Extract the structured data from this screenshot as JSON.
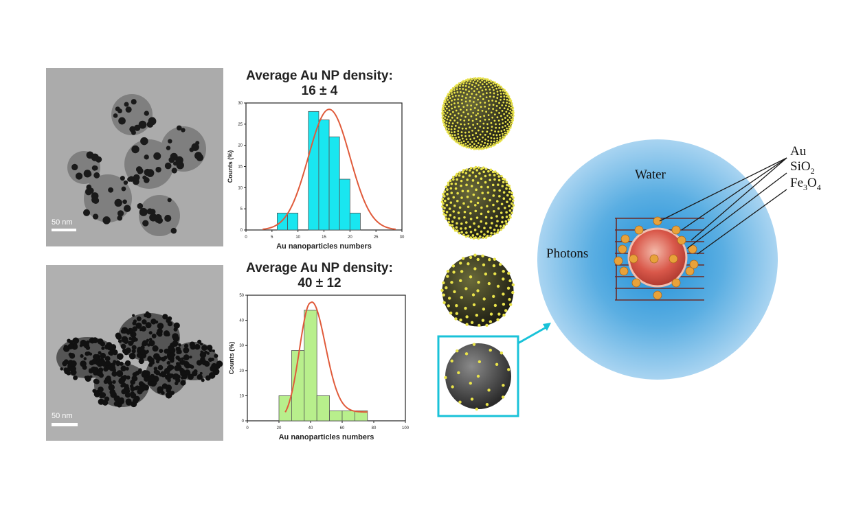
{
  "tem_images": [
    {
      "scale_label": "50 nm"
    },
    {
      "scale_label": "50 nm"
    }
  ],
  "histograms": [
    {
      "title_line1": "Average Au NP density:",
      "title_line2": "16 ± 4"
    },
    {
      "title_line1": "Average Au NP density:",
      "title_line2": "40 ± 12"
    }
  ],
  "chart_data": [
    {
      "type": "bar",
      "title": "Average Au NP density: 16 ± 4",
      "xlabel": "Au nanoparticles numbers",
      "ylabel": "Counts (%)",
      "xlim": [
        0,
        30
      ],
      "ylim": [
        0,
        30
      ],
      "xticks": [
        0,
        5,
        10,
        15,
        20,
        25,
        30
      ],
      "yticks": [
        0,
        5,
        10,
        15,
        20,
        25,
        30
      ],
      "bin_width": 2,
      "x": [
        7,
        9,
        13,
        15,
        17,
        19,
        21,
        23
      ],
      "values": [
        4,
        4,
        28,
        26,
        22,
        12,
        4,
        0
      ],
      "bar_color": "#19e6f0",
      "fit": {
        "type": "gaussian",
        "mean": 16,
        "sigma": 4,
        "peak": 28.5,
        "color": "#e05a3a"
      }
    },
    {
      "type": "bar",
      "title": "Average Au NP density: 40 ± 12",
      "xlabel": "Au nanoparticles numbers",
      "ylabel": "Counts (%)",
      "xlim": [
        0,
        100
      ],
      "ylim": [
        0,
        50
      ],
      "xticks": [
        0,
        20,
        40,
        60,
        80,
        100
      ],
      "yticks": [
        0,
        10,
        20,
        30,
        40,
        50
      ],
      "bin_width": 8,
      "x": [
        24,
        32,
        40,
        48,
        56,
        64,
        72
      ],
      "values": [
        10,
        28,
        44,
        10,
        4,
        4,
        4
      ],
      "bar_color": "#b8ef8c",
      "fit": {
        "type": "lognormal-like",
        "peak_x": 40,
        "peak": 47,
        "color": "#e05a3a"
      }
    }
  ],
  "diagram": {
    "water_label": "Water",
    "photons_label": "Photons",
    "legend": [
      {
        "text": "Au"
      },
      {
        "text": "SiO",
        "sub": "2"
      },
      {
        "text": "Fe",
        "sub1": "3",
        "text2": "O",
        "sub2": "4"
      }
    ],
    "colors": {
      "halo": "#3d9bd6",
      "gold": "#e8b23a",
      "highlight": "#19c2d8",
      "sphere_yellow": "#e9e34a"
    }
  }
}
